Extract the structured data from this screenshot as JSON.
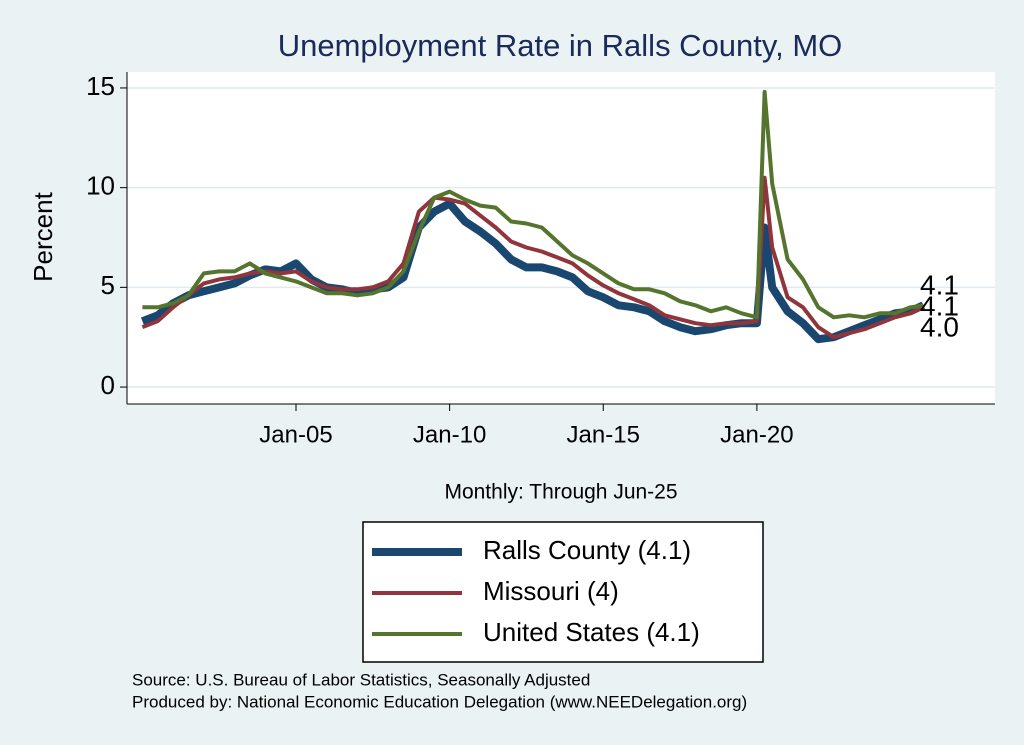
{
  "chart_data": {
    "type": "line",
    "title": "Unemployment Rate in Ralls  County, MO",
    "y_label": "Percent",
    "x_label": "Monthly: Through Jun-25",
    "source": "Source: U.S. Bureau of Labor Statistics, Seasonally Adjusted",
    "producer": "Produced by: National Economic Education Delegation (www.NEEDelegation.org)",
    "x": [
      "Jan-00",
      "Jul-00",
      "Jan-01",
      "Jul-01",
      "Jan-02",
      "Jul-02",
      "Jan-03",
      "Jul-03",
      "Jan-04",
      "Jul-04",
      "Jan-05",
      "Jul-05",
      "Jan-06",
      "Jul-06",
      "Jan-07",
      "Jul-07",
      "Jan-08",
      "Jul-08",
      "Jan-09",
      "Jul-09",
      "Jan-10",
      "Jul-10",
      "Jan-11",
      "Jul-11",
      "Jan-12",
      "Jul-12",
      "Jan-13",
      "Jul-13",
      "Jan-14",
      "Jul-14",
      "Jan-15",
      "Jul-15",
      "Jan-16",
      "Jul-16",
      "Jan-17",
      "Jul-17",
      "Jan-18",
      "Jul-18",
      "Jan-19",
      "Jul-19",
      "Jan-20",
      "Apr-20",
      "Jul-20",
      "Jan-21",
      "Jul-21",
      "Jan-22",
      "Jul-22",
      "Jan-23",
      "Jul-23",
      "Jan-24",
      "Jul-24",
      "Jan-25",
      "Jun-25"
    ],
    "xlim": [
      "Jul-99",
      "Oct-27"
    ],
    "xticks": [
      "Jan-05",
      "Jan-10",
      "Jan-15",
      "Jan-20"
    ],
    "ylim": [
      -0.85,
      15.8
    ],
    "yticks": [
      0,
      5,
      10,
      15
    ],
    "grid": true,
    "series": [
      {
        "name": "Ralls  County (4.1)",
        "color": "#1a476f",
        "width": 8,
        "end_label": "4.1",
        "values": [
          3.3,
          3.6,
          4.2,
          4.6,
          4.8,
          5.0,
          5.2,
          5.6,
          5.9,
          5.8,
          6.2,
          5.4,
          5.0,
          4.9,
          4.7,
          4.9,
          5.0,
          5.5,
          8.0,
          8.8,
          9.2,
          8.3,
          7.8,
          7.2,
          6.4,
          6.0,
          6.0,
          5.8,
          5.5,
          4.8,
          4.5,
          4.1,
          4.0,
          3.8,
          3.3,
          3.0,
          2.8,
          2.9,
          3.1,
          3.2,
          3.2,
          8.0,
          5.0,
          3.8,
          3.2,
          2.4,
          2.5,
          2.8,
          3.1,
          3.4,
          3.7,
          3.8,
          4.1
        ]
      },
      {
        "name": "Missouri (4)",
        "color": "#90353b",
        "width": 4,
        "end_label": "4.0",
        "values": [
          3.0,
          3.3,
          4.0,
          4.6,
          5.2,
          5.4,
          5.5,
          5.7,
          5.8,
          5.7,
          5.8,
          5.3,
          5.0,
          4.9,
          4.9,
          5.0,
          5.3,
          6.2,
          8.8,
          9.5,
          9.4,
          9.2,
          8.6,
          8.0,
          7.3,
          7.0,
          6.8,
          6.5,
          6.2,
          5.6,
          5.1,
          4.7,
          4.4,
          4.1,
          3.6,
          3.4,
          3.2,
          3.1,
          3.2,
          3.2,
          3.3,
          10.5,
          7.0,
          4.5,
          4.0,
          3.0,
          2.5,
          2.7,
          2.9,
          3.2,
          3.5,
          3.7,
          4.0
        ]
      },
      {
        "name": "United States (4.1)",
        "color": "#55752f",
        "width": 4,
        "end_label": "4.1",
        "values": [
          4.0,
          4.0,
          4.2,
          4.6,
          5.7,
          5.8,
          5.8,
          6.2,
          5.7,
          5.5,
          5.3,
          5.0,
          4.7,
          4.7,
          4.6,
          4.7,
          5.0,
          5.8,
          7.8,
          9.5,
          9.8,
          9.4,
          9.1,
          9.0,
          8.3,
          8.2,
          8.0,
          7.3,
          6.6,
          6.2,
          5.7,
          5.2,
          4.9,
          4.9,
          4.7,
          4.3,
          4.1,
          3.8,
          4.0,
          3.7,
          3.5,
          14.8,
          10.2,
          6.4,
          5.4,
          4.0,
          3.5,
          3.6,
          3.5,
          3.7,
          3.7,
          4.0,
          4.1
        ]
      }
    ]
  }
}
